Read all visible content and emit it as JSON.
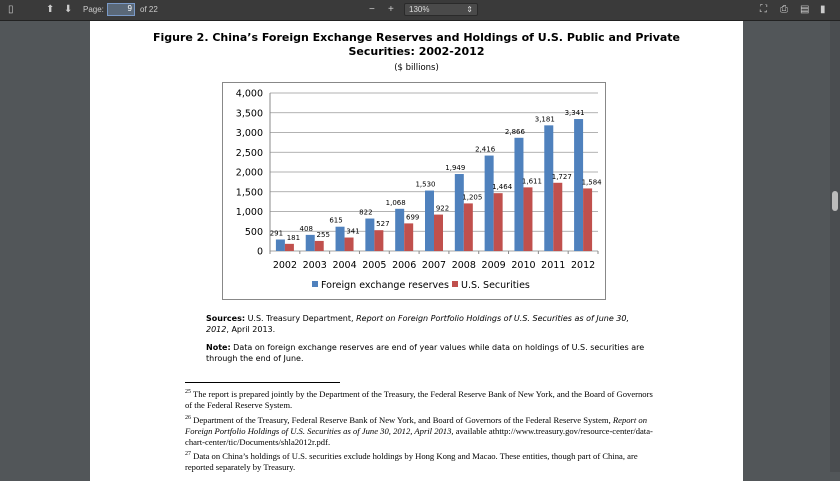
{
  "toolbar": {
    "page_label": "Page:",
    "page_value": "9",
    "page_total": "of 22",
    "zoom": "130%",
    "zoom_out": "−",
    "zoom_in": "+"
  },
  "document": {
    "title_line1": "Figure 2. China’s Foreign Exchange Reserves and Holdings of U.S. Public and Private",
    "title_line2": "Securities: 2002-2012",
    "units": "($ billions)",
    "sources_label": "Sources:",
    "sources_text": " U.S. Treasury Department, ",
    "sources_italic": "Report on Foreign Portfolio Holdings of U.S. Securities as of June 30, 2012",
    "sources_end": ", April 2013.",
    "note_label": "Note:",
    "note_text": " Data on foreign exchange reserves are end of year values while data on holdings of U.S. securities are through the end of June.",
    "footnotes": [
      {
        "num": "25",
        "text": "The report is prepared jointly by the Department of the Treasury, the Federal Reserve Bank of New York, and the Board of Governors of the Federal Reserve System."
      },
      {
        "num": "26",
        "text": "Department of the Treasury, Federal Reserve Bank of New York, and Board of Governors of the Federal Reserve System, ",
        "italic": "Report on Foreign Portfolio Holdings of U.S. Securities as of June 30, 2012, April 2013,",
        "end": " available athttp://www.treasury.gov/resource-center/data-chart-center/tic/Documents/shla2012r.pdf."
      },
      {
        "num": "27",
        "text": "Data on China’s holdings of U.S. securities exclude holdings by Hong Kong and Macao. These entities, though part of China, are reported separately by Treasury."
      }
    ]
  },
  "chart_data": {
    "type": "bar",
    "title": "China’s Foreign Exchange Reserves and Holdings of U.S. Public and Private Securities: 2002-2012",
    "ylabel": "($ billions)",
    "categories": [
      "2002",
      "2003",
      "2004",
      "2005",
      "2006",
      "2007",
      "2008",
      "2009",
      "2010",
      "2011",
      "2012"
    ],
    "series": [
      {
        "name": "Foreign exchange reserves",
        "color": "#4f81bd",
        "values": [
          291,
          408,
          615,
          822,
          1068,
          1530,
          1949,
          2416,
          2866,
          3181,
          3341
        ]
      },
      {
        "name": "U.S. Securities",
        "color": "#c0504d",
        "values": [
          181,
          255,
          341,
          527,
          699,
          922,
          1205,
          1464,
          1611,
          1727,
          1584
        ]
      }
    ],
    "ylim": [
      0,
      4000
    ],
    "yticks": [
      0,
      500,
      1000,
      1500,
      2000,
      2500,
      3000,
      3500,
      4000
    ],
    "grid": true,
    "legend": "bottom"
  }
}
